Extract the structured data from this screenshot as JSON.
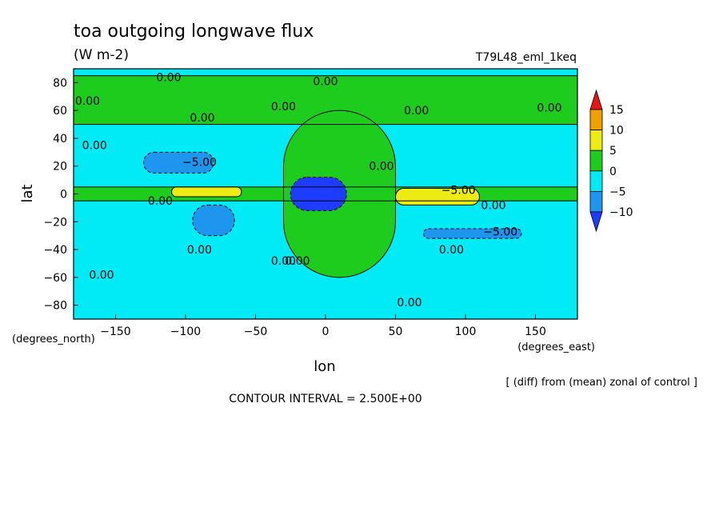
{
  "chart_data": {
    "type": "heatmap",
    "title": "toa outgoing longwave flux",
    "units": "(W m-2)",
    "run_label": "T79L48_eml_1keq",
    "xlabel": "lon",
    "ylabel": "lat",
    "x_unit_label": "(degrees_east)",
    "y_unit_label": "(degrees_north)",
    "xlim": [
      -180,
      180
    ],
    "ylim": [
      -90,
      90
    ],
    "x_ticks": [
      -150,
      -100,
      -50,
      0,
      50,
      100,
      150
    ],
    "y_ticks": [
      80,
      60,
      40,
      20,
      0,
      -20,
      -40,
      -60,
      -80
    ],
    "x_tick_labels": [
      "−150",
      "−100",
      "−50",
      "0",
      "50",
      "100",
      "150"
    ],
    "y_tick_labels": [
      "80",
      "60",
      "40",
      "20",
      "0",
      "−20",
      "−40",
      "−60",
      "−80"
    ],
    "colorbar": {
      "levels": [
        15,
        10,
        5,
        0,
        -5,
        -10
      ],
      "level_labels": [
        "15",
        "10",
        "5",
        "0",
        "−5",
        "−10"
      ],
      "colors": {
        "above_15": "#e8141a",
        "10_to_15": "#f0a000",
        "5_to_10": "#ecec14",
        "0_to_5": "#1ecc1e",
        "-5_to_0": "#00ebf5",
        "-10_to_-5": "#1e96f0",
        "below_-10": "#1e3cff"
      }
    },
    "contour_interval": 2.5,
    "contour_labels": [
      "0.00",
      "0.00",
      "0.00",
      "0.00",
      "0.00",
      "0.00",
      "0.00",
      "0.00",
      "0.00",
      "0.00",
      "0.00",
      "0.00",
      "0.00",
      "0.00",
      "0.00",
      "0.00",
      "0.00",
      "−5.00",
      "−5.00",
      "−5.00"
    ],
    "regions": [
      {
        "level": -2.5,
        "lon": [
          -180,
          180
        ],
        "lat": [
          -90,
          90
        ]
      },
      {
        "level": 2.5,
        "lon": [
          -30,
          50
        ],
        "lat": [
          -60,
          60
        ]
      },
      {
        "level": 2.5,
        "lon": [
          -180,
          180
        ],
        "lat": [
          -5,
          5
        ]
      },
      {
        "level": 2.5,
        "lon": [
          -180,
          180
        ],
        "lat": [
          50,
          85
        ]
      },
      {
        "level": -7.5,
        "lon": [
          -130,
          -80
        ],
        "lat": [
          15,
          30
        ]
      },
      {
        "level": -7.5,
        "lon": [
          -95,
          -65
        ],
        "lat": [
          -30,
          -8
        ]
      },
      {
        "level": -7.5,
        "lon": [
          70,
          140
        ],
        "lat": [
          -32,
          -25
        ]
      },
      {
        "level": 7.5,
        "lon": [
          -110,
          -60
        ],
        "lat": [
          -2,
          5
        ]
      },
      {
        "level": 7.5,
        "lon": [
          50,
          110
        ],
        "lat": [
          -8,
          4
        ]
      },
      {
        "level": -12.5,
        "lon": [
          -25,
          15
        ],
        "lat": [
          -12,
          12
        ]
      }
    ],
    "footer_note": "[ (diff) from (mean) zonal of control ]",
    "contour_interval_text": "CONTOUR INTERVAL = 2.500E+00"
  }
}
